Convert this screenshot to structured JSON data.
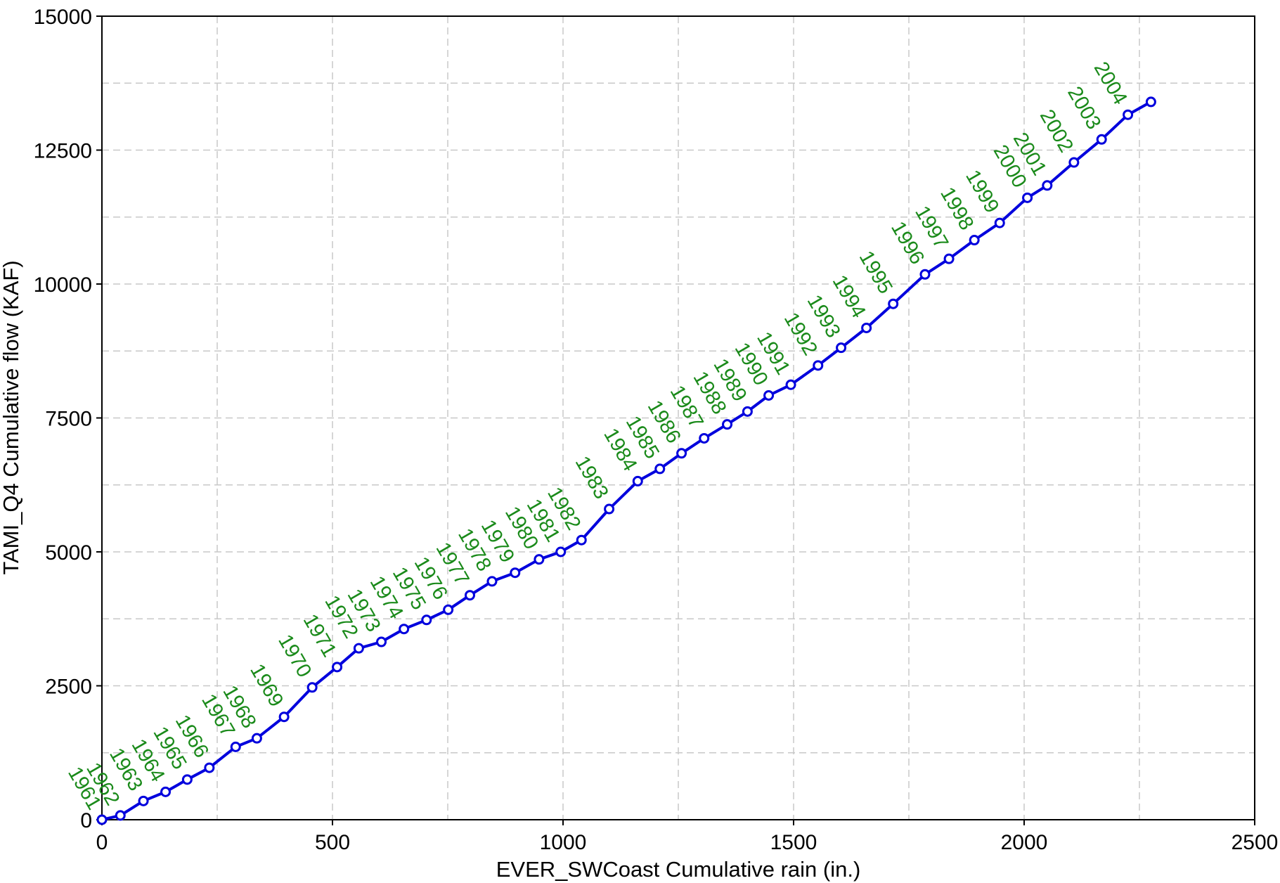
{
  "chart_data": {
    "type": "line",
    "title": "",
    "xlabel": "EVER_SWCoast Cumulative rain (in.)",
    "ylabel": "TAMI_Q4 Cumulative flow (KAF)",
    "xlim": [
      0,
      2500
    ],
    "ylim": [
      0,
      15000
    ],
    "x_ticks": [
      "0",
      "500",
      "1000",
      "1500",
      "2000",
      "2500"
    ],
    "y_ticks": [
      "0",
      "2500",
      "5000",
      "7500",
      "10000",
      "12500",
      "15000"
    ],
    "grid": true,
    "colors": {
      "line": "#0000dd",
      "labels": "#1a8a1a",
      "grid": "#c8c8c8"
    },
    "series": [
      {
        "points": [
          {
            "year": "1961",
            "x": 0,
            "y": 0
          },
          {
            "year": "1962",
            "x": 40,
            "y": 80
          },
          {
            "year": "1963",
            "x": 90,
            "y": 350
          },
          {
            "year": "1964",
            "x": 138,
            "y": 520
          },
          {
            "year": "1965",
            "x": 185,
            "y": 750
          },
          {
            "year": "1966",
            "x": 233,
            "y": 970
          },
          {
            "year": "1967",
            "x": 290,
            "y": 1360
          },
          {
            "year": "1968",
            "x": 336,
            "y": 1520
          },
          {
            "year": "1969",
            "x": 395,
            "y": 1920
          },
          {
            "year": "1970",
            "x": 456,
            "y": 2470
          },
          {
            "year": "1971",
            "x": 510,
            "y": 2850
          },
          {
            "year": "1972",
            "x": 557,
            "y": 3200
          },
          {
            "year": "1973",
            "x": 606,
            "y": 3320
          },
          {
            "year": "1974",
            "x": 655,
            "y": 3560
          },
          {
            "year": "1975",
            "x": 704,
            "y": 3730
          },
          {
            "year": "1976",
            "x": 751,
            "y": 3920
          },
          {
            "year": "1977",
            "x": 798,
            "y": 4190
          },
          {
            "year": "1978",
            "x": 846,
            "y": 4450
          },
          {
            "year": "1979",
            "x": 896,
            "y": 4610
          },
          {
            "year": "1980",
            "x": 948,
            "y": 4860
          },
          {
            "year": "1981",
            "x": 995,
            "y": 5000
          },
          {
            "year": "1982",
            "x": 1040,
            "y": 5220
          },
          {
            "year": "1983",
            "x": 1100,
            "y": 5800
          },
          {
            "year": "1984",
            "x": 1162,
            "y": 6320
          },
          {
            "year": "1985",
            "x": 1210,
            "y": 6550
          },
          {
            "year": "1986",
            "x": 1257,
            "y": 6840
          },
          {
            "year": "1987",
            "x": 1306,
            "y": 7120
          },
          {
            "year": "1988",
            "x": 1356,
            "y": 7380
          },
          {
            "year": "1989",
            "x": 1400,
            "y": 7620
          },
          {
            "year": "1990",
            "x": 1446,
            "y": 7920
          },
          {
            "year": "1991",
            "x": 1494,
            "y": 8120
          },
          {
            "year": "1992",
            "x": 1553,
            "y": 8480
          },
          {
            "year": "1993",
            "x": 1603,
            "y": 8810
          },
          {
            "year": "1994",
            "x": 1658,
            "y": 9180
          },
          {
            "year": "1995",
            "x": 1716,
            "y": 9630
          },
          {
            "year": "1996",
            "x": 1785,
            "y": 10180
          },
          {
            "year": "1997",
            "x": 1837,
            "y": 10470
          },
          {
            "year": "1998",
            "x": 1892,
            "y": 10820
          },
          {
            "year": "1999",
            "x": 1947,
            "y": 11140
          },
          {
            "year": "2000",
            "x": 2007,
            "y": 11610
          },
          {
            "year": "2001",
            "x": 2050,
            "y": 11840
          },
          {
            "year": "2002",
            "x": 2108,
            "y": 12270
          },
          {
            "year": "2003",
            "x": 2168,
            "y": 12700
          },
          {
            "year": "2004",
            "x": 2225,
            "y": 13160
          },
          {
            "year": "",
            "x": 2275,
            "y": 13400
          }
        ]
      }
    ]
  }
}
